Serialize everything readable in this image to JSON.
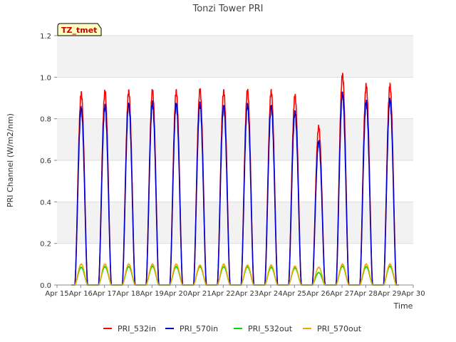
{
  "chart_data": {
    "type": "line",
    "title": "Tonzi Tower PRI",
    "badge": "TZ_tmet",
    "xlabel": "Time",
    "ylabel": "PRI Channel (W/m2/nm)",
    "ylim": [
      0.0,
      1.2
    ],
    "yticks": [
      0.0,
      0.2,
      0.4,
      0.6,
      0.8,
      1.0,
      1.2
    ],
    "xlim": [
      15,
      30
    ],
    "xticks": [
      15,
      16,
      17,
      18,
      19,
      20,
      21,
      22,
      23,
      24,
      25,
      26,
      27,
      28,
      29,
      30
    ],
    "xtick_labels": [
      "Apr 15",
      "Apr 16",
      "Apr 17",
      "Apr 18",
      "Apr 19",
      "Apr 20",
      "Apr 21",
      "Apr 22",
      "Apr 23",
      "Apr 24",
      "Apr 25",
      "Apr 26",
      "Apr 27",
      "Apr 28",
      "Apr 29",
      "Apr 30"
    ],
    "days": [
      16,
      17,
      18,
      19,
      20,
      21,
      22,
      23,
      24,
      25,
      26,
      27,
      28,
      29
    ],
    "series": [
      {
        "name": "PRI_532in",
        "color": "#ff0000",
        "peaks": [
          0.92,
          0.93,
          0.93,
          0.935,
          0.93,
          0.94,
          0.93,
          0.935,
          0.93,
          0.91,
          0.76,
          1.01,
          0.96,
          0.96
        ]
      },
      {
        "name": "PRI_570in",
        "color": "#0000cc",
        "peaks": [
          0.85,
          0.86,
          0.87,
          0.875,
          0.87,
          0.87,
          0.86,
          0.865,
          0.86,
          0.83,
          0.69,
          0.92,
          0.88,
          0.89
        ]
      },
      {
        "name": "PRI_532out",
        "color": "#00dd00",
        "peaks": [
          0.085,
          0.088,
          0.088,
          0.09,
          0.088,
          0.088,
          0.088,
          0.087,
          0.085,
          0.082,
          0.06,
          0.09,
          0.088,
          0.09
        ]
      },
      {
        "name": "PRI_570out",
        "color": "#f0a800",
        "peaks": [
          0.1,
          0.1,
          0.1,
          0.1,
          0.1,
          0.095,
          0.1,
          0.095,
          0.095,
          0.09,
          0.085,
          0.1,
          0.1,
          0.1
        ]
      }
    ]
  }
}
